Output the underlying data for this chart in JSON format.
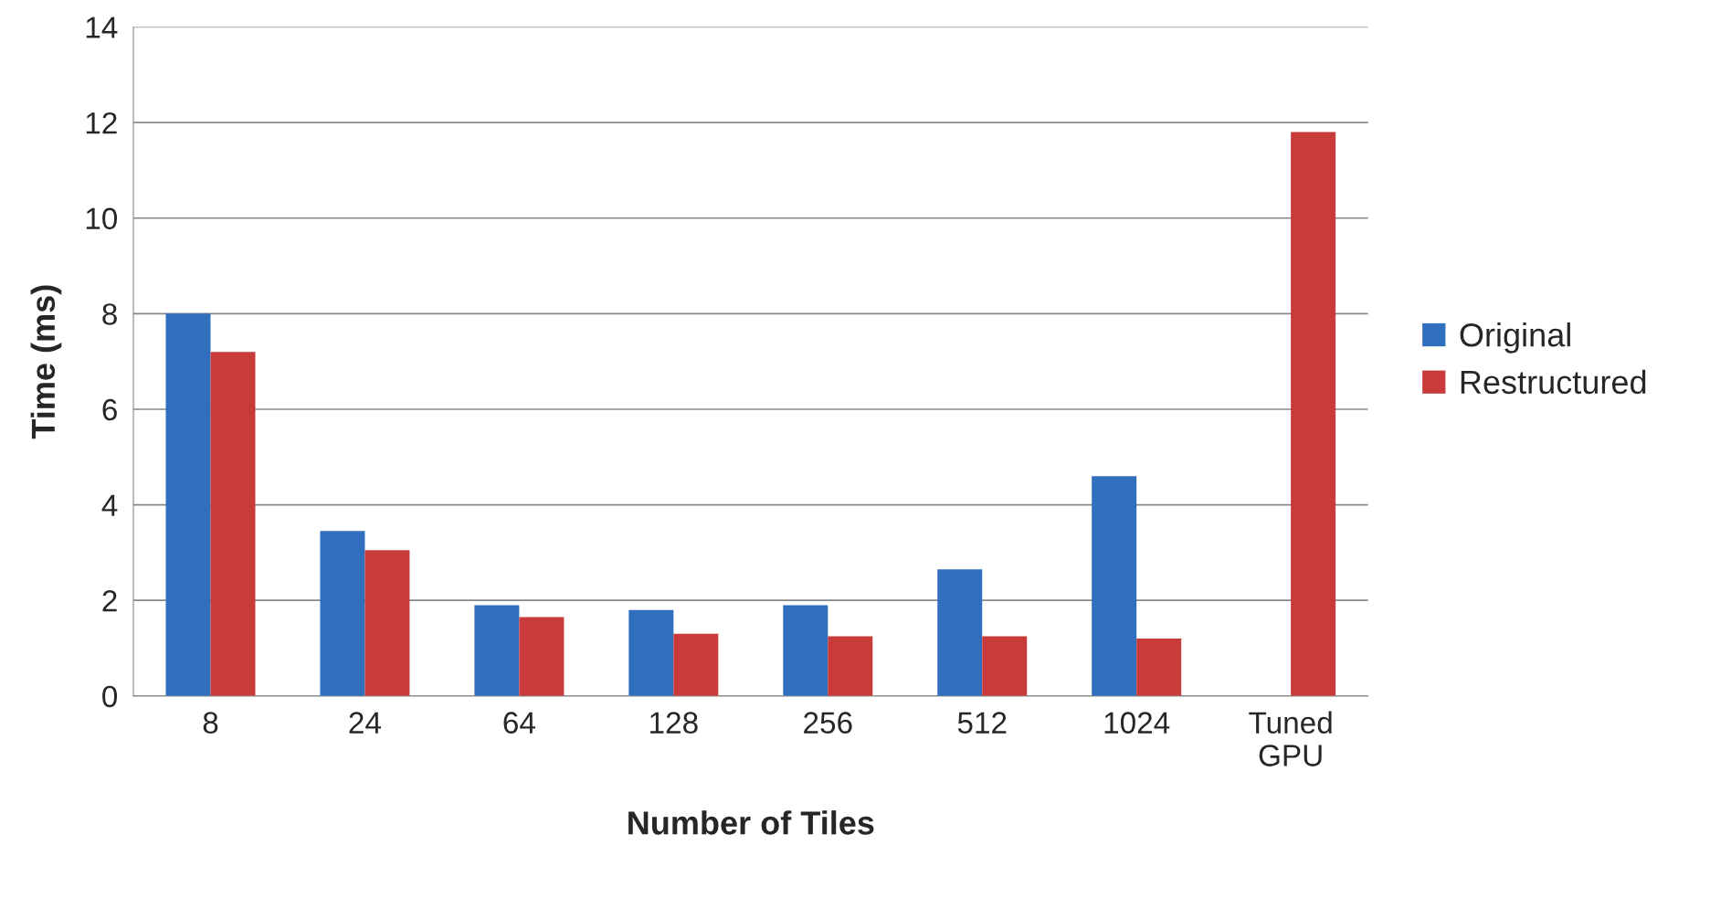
{
  "chart_data": {
    "type": "bar",
    "xlabel": "Number of Tiles",
    "ylabel": "Time (ms)",
    "categories": [
      "8",
      "24",
      "64",
      "128",
      "256",
      "512",
      "1024",
      "Tuned\nGPU"
    ],
    "series": [
      {
        "name": "Original",
        "color": "#2f6fbe",
        "values": [
          8.0,
          3.45,
          1.9,
          1.8,
          1.9,
          2.65,
          4.6,
          null
        ]
      },
      {
        "name": "Restructured",
        "color": "#c93b3b",
        "values": [
          7.2,
          3.05,
          1.65,
          1.3,
          1.25,
          1.25,
          1.2,
          11.8
        ]
      }
    ],
    "ylim": [
      0,
      14
    ],
    "yticks": [
      0,
      2,
      4,
      6,
      8,
      10,
      12,
      14
    ],
    "grid": "y",
    "legend": "right"
  }
}
